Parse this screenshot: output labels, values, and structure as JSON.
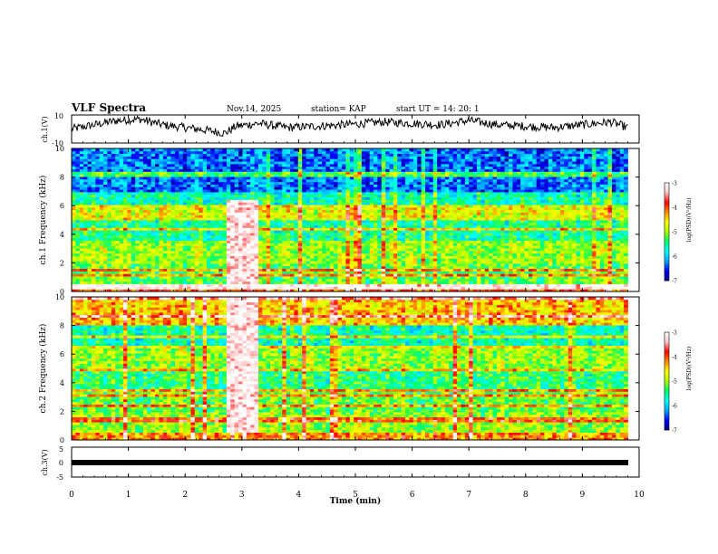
{
  "header": {
    "title": "VLF Spectra",
    "date": "Nov.14, 2025",
    "station": "station= KAP",
    "start_ut": "start  UT  =   14: 20: 1"
  },
  "chart_data": [
    {
      "type": "line",
      "name": "ch1-waveform",
      "ylabel": "ch.1(V)",
      "ylim": [
        -10,
        10
      ],
      "ytick_labels": [
        "10",
        "-10"
      ],
      "x_range_min": [
        0,
        9.8
      ],
      "description": "slow-varying amplitude trace, mostly between -4 and 8 V",
      "y_profile": [
        {
          "x": 0.0,
          "y": 0
        },
        {
          "x": 0.4,
          "y": 3
        },
        {
          "x": 0.8,
          "y": 6
        },
        {
          "x": 1.2,
          "y": 7
        },
        {
          "x": 1.6,
          "y": 3
        },
        {
          "x": 2.0,
          "y": 1
        },
        {
          "x": 2.4,
          "y": -1
        },
        {
          "x": 2.7,
          "y": -3
        },
        {
          "x": 2.9,
          "y": 2
        },
        {
          "x": 3.3,
          "y": 4
        },
        {
          "x": 3.8,
          "y": 1
        },
        {
          "x": 4.3,
          "y": 2
        },
        {
          "x": 4.8,
          "y": 3
        },
        {
          "x": 5.5,
          "y": 5
        },
        {
          "x": 6.0,
          "y": 4
        },
        {
          "x": 6.5,
          "y": 3
        },
        {
          "x": 7.0,
          "y": 6
        },
        {
          "x": 7.5,
          "y": 3
        },
        {
          "x": 8.0,
          "y": 2
        },
        {
          "x": 8.5,
          "y": 1
        },
        {
          "x": 9.0,
          "y": 3
        },
        {
          "x": 9.5,
          "y": 5
        },
        {
          "x": 9.8,
          "y": 1
        }
      ]
    },
    {
      "type": "heatmap",
      "name": "ch1-spectrogram",
      "ylabel": "ch.1 Frequency (kHz)",
      "ylim": [
        0,
        10
      ],
      "ytick_labels": [
        "0",
        "2",
        "4",
        "6",
        "8",
        "10"
      ],
      "x_range_min": [
        0,
        9.8
      ],
      "colorbar": {
        "label": "log(PSD)(V²/Hz)",
        "range": [
          -7,
          -3
        ],
        "tick_labels": [
          "-3",
          "-4",
          "-5",
          "-6",
          "-7"
        ],
        "colors": [
          "#000080",
          "#0000ff",
          "#00aaff",
          "#00ffff",
          "#00ff66",
          "#aaff00",
          "#ffff00",
          "#ff8800",
          "#ff0000",
          "#ffcccc",
          "#ffffff"
        ]
      },
      "bands": [
        {
          "f_low": 7.0,
          "f_high": 10.0,
          "level": -6.3
        },
        {
          "f_low": 6.1,
          "f_high": 7.0,
          "level": -5.6
        },
        {
          "f_low": 5.0,
          "f_high": 6.1,
          "level": -4.7
        },
        {
          "f_low": 3.5,
          "f_high": 5.0,
          "level": -5.5
        },
        {
          "f_low": 2.0,
          "f_high": 3.5,
          "level": -5.0
        },
        {
          "f_low": 0.5,
          "f_high": 2.0,
          "level": -5.2
        },
        {
          "f_low": 0.0,
          "f_high": 0.5,
          "level": -4.0
        }
      ],
      "burst": {
        "t_start": 2.7,
        "t_end": 3.3,
        "f_low": 0.5,
        "f_high": 6.5,
        "level": -3.2
      }
    },
    {
      "type": "heatmap",
      "name": "ch2-spectrogram",
      "ylabel": "ch.2 Frequency (kHz)",
      "ylim": [
        0,
        10
      ],
      "ytick_labels": [
        "0",
        "2",
        "4",
        "6",
        "8",
        "10"
      ],
      "x_range_min": [
        0,
        9.8
      ],
      "colorbar": {
        "label": "log(PSD)(V²/Hz)",
        "range": [
          -7,
          -3
        ],
        "tick_labels": [
          "-3",
          "-4",
          "-5",
          "-6",
          "-7"
        ],
        "colors": [
          "#000080",
          "#0000ff",
          "#00aaff",
          "#00ffff",
          "#00ff66",
          "#aaff00",
          "#ffff00",
          "#ff8800",
          "#ff0000",
          "#ffcccc",
          "#ffffff"
        ]
      },
      "bands": [
        {
          "f_low": 8.0,
          "f_high": 10.0,
          "level": -4.4
        },
        {
          "f_low": 6.5,
          "f_high": 8.0,
          "level": -5.6
        },
        {
          "f_low": 5.0,
          "f_high": 6.5,
          "level": -5.0
        },
        {
          "f_low": 3.5,
          "f_high": 5.0,
          "level": -5.4
        },
        {
          "f_low": 2.0,
          "f_high": 3.5,
          "level": -5.2
        },
        {
          "f_low": 0.5,
          "f_high": 2.0,
          "level": -5.0
        },
        {
          "f_low": 0.0,
          "f_high": 0.5,
          "level": -4.2
        }
      ],
      "burst": {
        "t_start": 2.7,
        "t_end": 3.3,
        "f_low": 0.5,
        "f_high": 10.0,
        "level": -3.2
      }
    },
    {
      "type": "line",
      "name": "ch3-waveform",
      "ylabel": "ch.3(V)",
      "ylim": [
        -5,
        5
      ],
      "ytick_labels": [
        "5",
        "0",
        "-5"
      ],
      "x_range_min": [
        0,
        9.8
      ],
      "description": "nearly constant thick trace at 0 V",
      "value": 0
    }
  ],
  "x_axis": {
    "label": "Time  (min)",
    "range": [
      0,
      10
    ],
    "tick_labels": [
      "0",
      "1",
      "2",
      "3",
      "4",
      "5",
      "6",
      "7",
      "8",
      "9",
      "10"
    ]
  }
}
